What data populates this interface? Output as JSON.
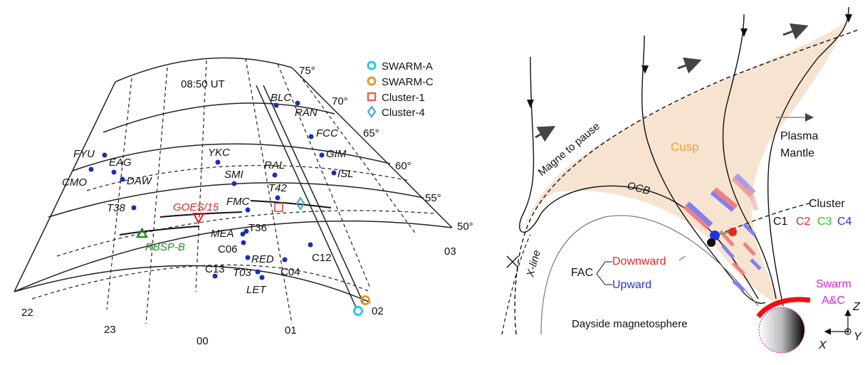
{
  "left_panel": {
    "time_label": "08:50 UT",
    "lat_labels": [
      "75°",
      "70°",
      "65°",
      "60°",
      "55°",
      "50°"
    ],
    "mlt_labels": [
      "22",
      "23",
      "00",
      "01",
      "02",
      "03"
    ],
    "legend": [
      {
        "label": "SWARM-A",
        "color": "#22ccdd",
        "shape": "circle"
      },
      {
        "label": "SWARM-C",
        "color": "#e8942a",
        "shape": "circle"
      },
      {
        "label": "Cluster-1",
        "color": "#e06a5a",
        "shape": "square"
      },
      {
        "label": "Cluster-4",
        "color": "#2aa8e0",
        "shape": "diamond"
      }
    ],
    "stations": [
      "BLC",
      "RAN",
      "FCC",
      "GIM",
      "ISL",
      "RAL",
      "T42",
      "YKC",
      "SMI",
      "FMC",
      "FYU",
      "EAG",
      "DAW",
      "CMO",
      "T38",
      "MEA",
      "T36",
      "C06",
      "RED",
      "C12",
      "C04",
      "C13",
      "T03",
      "LET"
    ],
    "goes_label": "GOES/15",
    "goes_color": "#dd2222",
    "rbsp_label": "RBSP-B",
    "rbsp_color": "#2a8a2a",
    "station_color": "#1c2fb0"
  },
  "right_panel": {
    "labels": {
      "magnetopause": "Magne to pause",
      "cusp": "Cusp",
      "plasma_mantle": "Plasma\nMantle",
      "ocb": "OCB",
      "cluster": "Cluster",
      "x_line": "X-line",
      "fac": "FAC",
      "downward": "Downward",
      "upward": "Upward",
      "swarm": "Swarm\nA&C",
      "dayside": "Dayside magnetosphere",
      "axis_z": "Z",
      "axis_x": "X",
      "axis_y": "Y"
    },
    "cluster_spacecraft": [
      {
        "label": "C1",
        "color": "#111111"
      },
      {
        "label": "C2",
        "color": "#ee2222"
      },
      {
        "label": "C3",
        "color": "#22cc22"
      },
      {
        "label": "C4",
        "color": "#2233dd"
      }
    ],
    "colors": {
      "cusp_fill": "#f6e4d0",
      "cusp_text": "#f0a030",
      "downward": "#ee2222",
      "upward": "#2233dd",
      "swarm": "#dd22dd",
      "swarm_arc": "#ee1111",
      "arrow_red": "#f08080",
      "arrow_blue": "#8080f0"
    }
  }
}
